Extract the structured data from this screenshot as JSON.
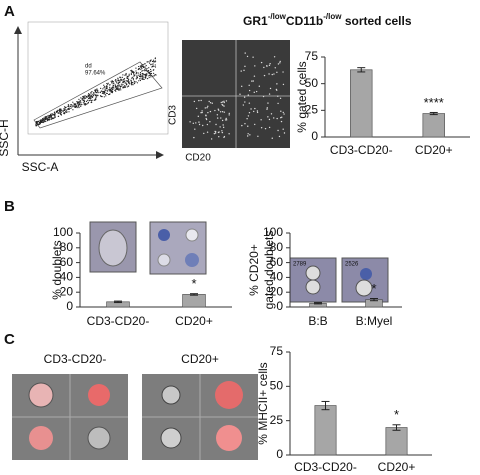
{
  "panels": {
    "A": {
      "letter": "A",
      "title_parts": [
        "GR1",
        "-/low",
        "CD11b",
        "-/low",
        " sorted cells"
      ],
      "flow_y_label": "SSC-H",
      "flow_x_label": "SSC-A",
      "gate_name": "dd",
      "gate_percent": "97.64%",
      "quad_y_label": "CD3",
      "quad_x_label": "CD20"
    },
    "B": {
      "letter": "B",
      "image_labels": [
        "2789",
        "2526"
      ]
    },
    "C": {
      "letter": "C",
      "image_titles": [
        "CD3-CD20-",
        "CD20+"
      ]
    }
  },
  "chart_data": [
    {
      "type": "bar",
      "y_label": "% gated cells",
      "categories": [
        "CD3-CD20-",
        "CD20+"
      ],
      "values": [
        63,
        22
      ],
      "error": [
        2,
        1
      ],
      "annotation_labels": [
        null,
        "****"
      ],
      "color": "#a6a6a6",
      "ylim": [
        0,
        75
      ],
      "yticks": [
        0,
        25,
        50,
        75
      ]
    },
    {
      "type": "bar",
      "y_label": "% doublets",
      "categories": [
        "CD3-CD20-",
        "CD20+"
      ],
      "values": [
        7,
        17
      ],
      "error": [
        1,
        1
      ],
      "annotation_labels": [
        null,
        "*"
      ],
      "color": "#a6a6a6",
      "ylim": [
        0,
        100
      ],
      "yticks": [
        0,
        20,
        40,
        60,
        80,
        100
      ]
    },
    {
      "type": "bar",
      "y_label": [
        "% CD20+",
        "gated doublets"
      ],
      "categories": [
        "B:B",
        "B:Myel"
      ],
      "values": [
        5,
        10
      ],
      "error": [
        0.8,
        1.5
      ],
      "annotation_labels": [
        null,
        "*"
      ],
      "color": "#a6a6a6",
      "ylim": [
        0,
        100
      ],
      "yticks": [
        0,
        20,
        40,
        60,
        80,
        100
      ]
    },
    {
      "type": "bar",
      "y_label": "% MHCII+ cells",
      "categories": [
        "CD3-CD20-",
        "CD20+"
      ],
      "values": [
        36,
        20
      ],
      "error": [
        3,
        2
      ],
      "annotation_labels": [
        null,
        "*"
      ],
      "color": "#a6a6a6",
      "ylim": [
        0,
        75
      ],
      "yticks": [
        0,
        25,
        50,
        75
      ]
    }
  ]
}
